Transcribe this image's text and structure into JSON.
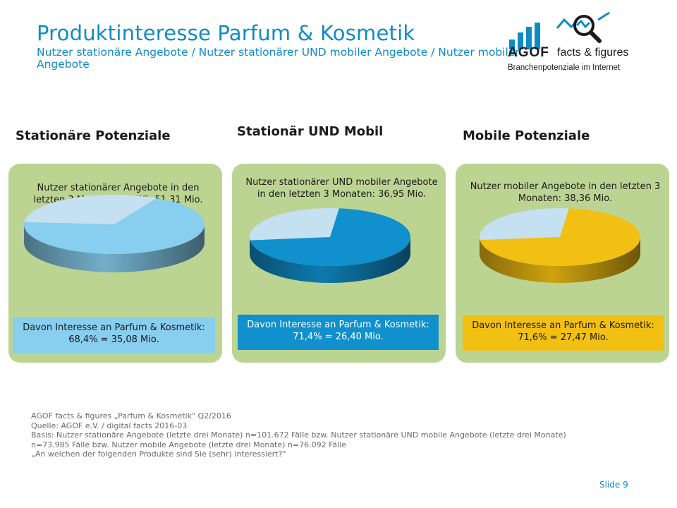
{
  "header": {
    "title": "Produktinteresse Parfum & Kosmetik",
    "subtitle": "Nutzer stationäre Angebote / Nutzer stationärer UND mobiler Angebote / Nutzer mobiler Angebote"
  },
  "logo": {
    "brand": "AGOF",
    "tagline": "facts & figures",
    "subline": "Branchenpotenziale im Internet"
  },
  "chart_data": [
    {
      "type": "pie",
      "title": "Stationäre Potenziale",
      "description": "Nutzer stationärer Angebote in den letzten 3 Monaten (WNK): 51,31 Mio.",
      "callout": "Davon Interesse an Parfum & Kosmetik: 68,4% = 35,08 Mio.",
      "values": [
        68.4,
        31.6
      ],
      "colors": {
        "highlight": "#87ceef",
        "rest": "#c5e0f0",
        "panel": "#bcd492",
        "callout_bg": "#87ceef",
        "callout_text": "#1b1b1b"
      }
    },
    {
      "type": "pie",
      "title": "Stationär UND Mobil",
      "description": "Nutzer stationärer UND mobiler Angebote in den letzten 3 Monaten: 36,95 Mio.",
      "callout": "Davon Interesse an Parfum & Kosmetik: 71,4% = 26,40 Mio.",
      "values": [
        71.4,
        28.6
      ],
      "colors": {
        "highlight": "#1090cc",
        "rest": "#c5e0f0",
        "panel": "#bcd492",
        "callout_bg": "#1090cc",
        "callout_text": "#ffffff"
      }
    },
    {
      "type": "pie",
      "title": "Mobile Potenziale",
      "description": "Nutzer mobiler Angebote in den letzten 3 Monaten: 38,36 Mio.",
      "callout": "Davon Interesse an Parfum & Kosmetik: 71,6% = 27,47 Mio.",
      "values": [
        71.6,
        28.4
      ],
      "colors": {
        "highlight": "#f2c012",
        "rest": "#c5e0f0",
        "panel": "#bcd492",
        "callout_bg": "#f2c012",
        "callout_text": "#1b1b1b"
      }
    }
  ],
  "footer": {
    "source": "AGOF facts & figures „Parfum & Kosmetik\" Q2/2016\nQuelle: AGOF e.V. / digital facts 2016-03\nBasis: Nutzer stationäre Angebote (letzte drei Monate) n=101.672 Fälle bzw. Nutzer stationäre UND mobile Angebote (letzte drei Monate)\nn=73.985 Fälle bzw. Nutzer mobile Angebote (letzte drei Monate) n=76.092 Fälle\n„An welchen der folgenden Produkte sind Sie (sehr) interessiert?\"",
    "slide_label": "Slide 9"
  }
}
